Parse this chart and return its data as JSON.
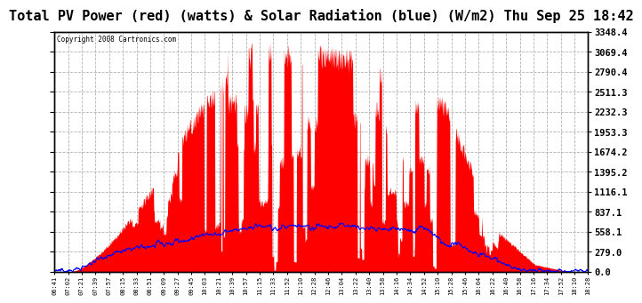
{
  "title": "Total PV Power (red) (watts) & Solar Radiation (blue) (W/m2) Thu Sep 25 18:42",
  "copyright_text": "Copyright 2008 Cartronics.com",
  "title_fontsize": 11,
  "background_color": "#ffffff",
  "plot_bg_color": "#ffffff",
  "ylabel_right_values": [
    0.0,
    279.0,
    558.1,
    837.1,
    1116.1,
    1395.2,
    1674.2,
    1953.3,
    2232.3,
    2511.3,
    2790.4,
    3069.4,
    3348.4
  ],
  "ymax": 3348.4,
  "x_tick_labels": [
    "06:41",
    "07:02",
    "07:21",
    "07:39",
    "07:57",
    "08:15",
    "08:33",
    "08:51",
    "09:09",
    "09:27",
    "09:45",
    "10:03",
    "10:21",
    "10:39",
    "10:57",
    "11:15",
    "11:33",
    "11:52",
    "12:10",
    "12:28",
    "12:46",
    "13:04",
    "13:22",
    "13:40",
    "13:58",
    "14:16",
    "14:34",
    "14:52",
    "15:10",
    "15:28",
    "15:46",
    "16:04",
    "16:22",
    "16:40",
    "16:58",
    "17:16",
    "17:34",
    "17:52",
    "18:10",
    "18:28"
  ],
  "pv_color": "#ff0000",
  "radiation_color": "#0000ff",
  "grid_color": "#aaaaaa",
  "border_color": "#000000"
}
